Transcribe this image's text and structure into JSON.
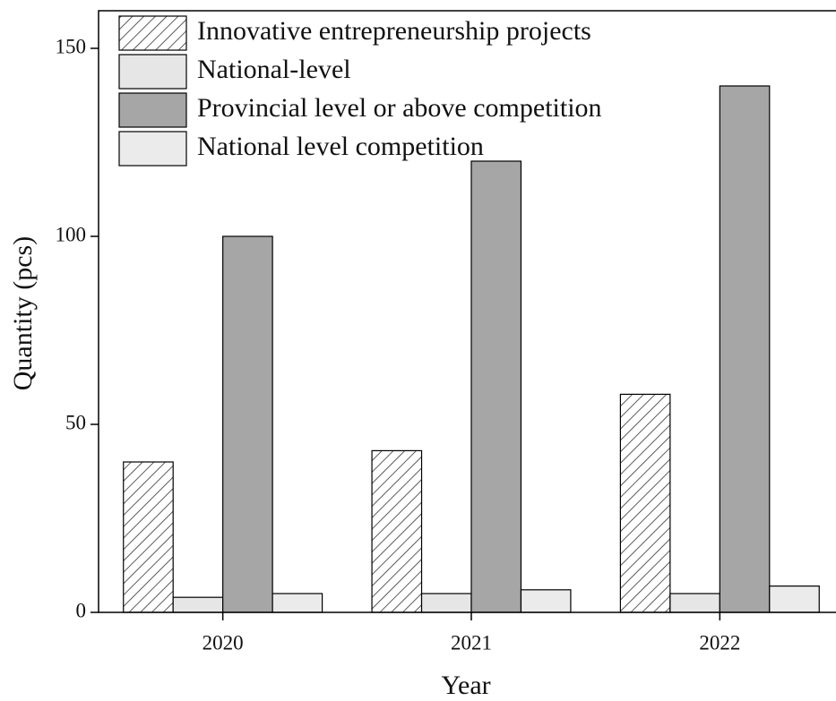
{
  "chart_data": {
    "type": "bar",
    "categories": [
      "2020",
      "2021",
      "2022"
    ],
    "series": [
      {
        "name": "Innovative entrepreneurship projects",
        "color": "#ffffff",
        "pattern": "hatch",
        "values": [
          40,
          43,
          58
        ]
      },
      {
        "name": "National-level",
        "color": "#e6e6e6",
        "values": [
          4,
          5,
          5
        ]
      },
      {
        "name": "Provincial level or above competition",
        "color": "#a6a6a6",
        "values": [
          100,
          120,
          140
        ]
      },
      {
        "name": "National level competition",
        "color": "#ebebeb",
        "values": [
          5,
          6,
          7
        ]
      }
    ],
    "xlabel": "Year",
    "ylabel": "Quantity (pcs)",
    "ylim": [
      0,
      160
    ],
    "yticks": [
      0,
      50,
      100,
      150
    ],
    "legend": "upper left"
  }
}
